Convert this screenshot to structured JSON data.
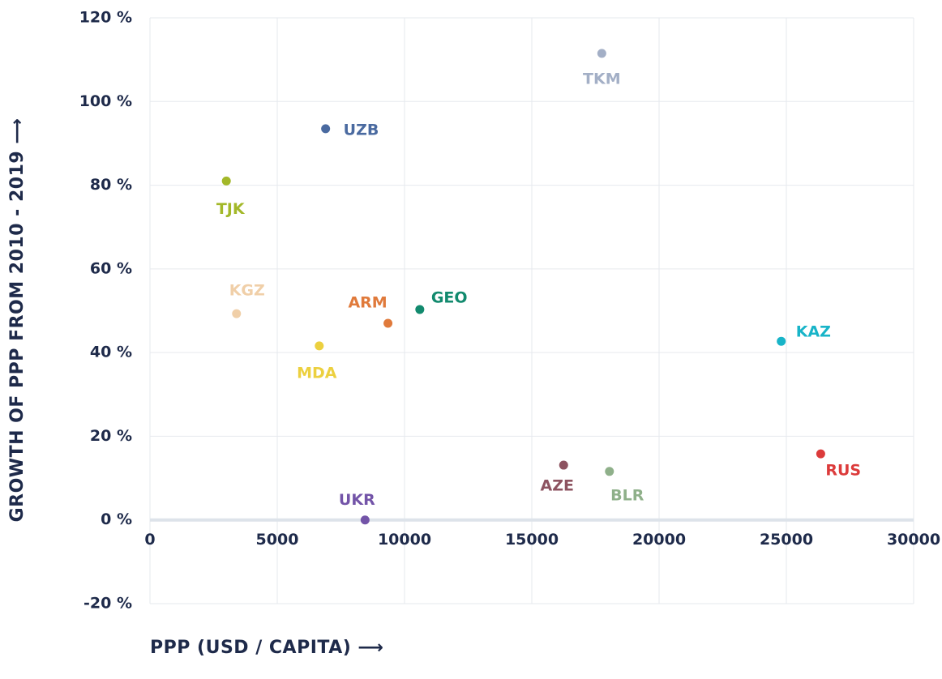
{
  "chart_data": {
    "type": "scatter",
    "x_label": "PPP (USD / CAPITA) ⟶",
    "y_label": "GROWTH OF PPP FROM 2010 - 2019 ⟶",
    "labels": [
      "TKM",
      "UZB",
      "TJK",
      "KGZ",
      "MDA",
      "ARM",
      "GEO",
      "KAZ",
      "RUS",
      "AZE",
      "BLR",
      "UKR"
    ],
    "x": [
      17750,
      6900,
      3000,
      3400,
      6650,
      9350,
      10600,
      24800,
      26350,
      16250,
      18050,
      8450
    ],
    "values": [
      111.5,
      93.5,
      81,
      49.3,
      41.6,
      47,
      50.3,
      42.7,
      15.8,
      13.1,
      11.6,
      0
    ],
    "colors": [
      "#a3afc6",
      "#4a6aa0",
      "#a3b829",
      "#f0cfa8",
      "#ecd03f",
      "#e07a3b",
      "#128a6e",
      "#18b4c8",
      "#dc3b3b",
      "#8d5360",
      "#8fb08a",
      "#7354a8"
    ],
    "xlim": [
      0,
      30000
    ],
    "xticks": [
      0,
      5000,
      10000,
      15000,
      20000,
      25000,
      30000
    ],
    "ylim": [
      -20,
      120
    ],
    "yticks": [
      {
        "value": -20,
        "label": "-20 %"
      },
      {
        "value": 0,
        "label": "0 %"
      },
      {
        "value": 20,
        "label": "20 %"
      },
      {
        "value": 40,
        "label": "40 %"
      },
      {
        "value": 60,
        "label": "60 %"
      },
      {
        "value": 80,
        "label": "80 %"
      },
      {
        "value": 100,
        "label": "100 %"
      },
      {
        "value": 120,
        "label": "120 %"
      }
    ],
    "grid": true
  }
}
